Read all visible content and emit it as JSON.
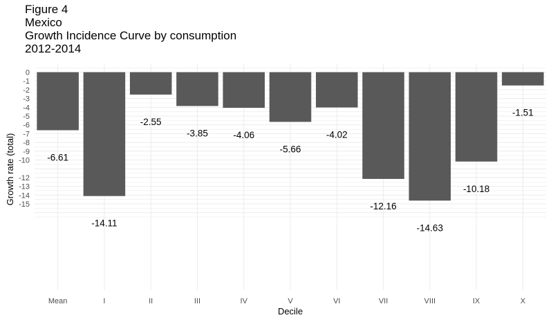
{
  "chart_data": {
    "type": "bar",
    "title_lines": [
      "Figure 4",
      "Mexico",
      "Growth Incidence Curve by consumption",
      "2012-2014"
    ],
    "xlabel": "Decile",
    "ylabel": "Growth rate (total)",
    "categories": [
      "Mean",
      "I",
      "II",
      "III",
      "IV",
      "V",
      "VI",
      "VII",
      "VIII",
      "IX",
      "X"
    ],
    "values": [
      -6.61,
      -14.11,
      -2.55,
      -3.85,
      -4.06,
      -5.66,
      -4.02,
      -12.16,
      -14.63,
      -10.18,
      -1.51
    ],
    "labels": [
      "-6.61",
      "-14.11",
      "-2.55",
      "-3.85",
      "-4.06",
      "-5.66",
      "-4.02",
      "-12.16",
      "-14.63",
      "-10.18",
      "-1.51"
    ],
    "yticks": [
      0,
      -1,
      -2,
      -3,
      -4,
      -5,
      -6,
      -7,
      -8,
      -9,
      -10,
      -12,
      -13,
      -14,
      -15
    ],
    "ylim": [
      -16.7,
      0.5
    ],
    "grid": true,
    "bar_color": "#595959",
    "grid_color": "#ebebeb"
  }
}
